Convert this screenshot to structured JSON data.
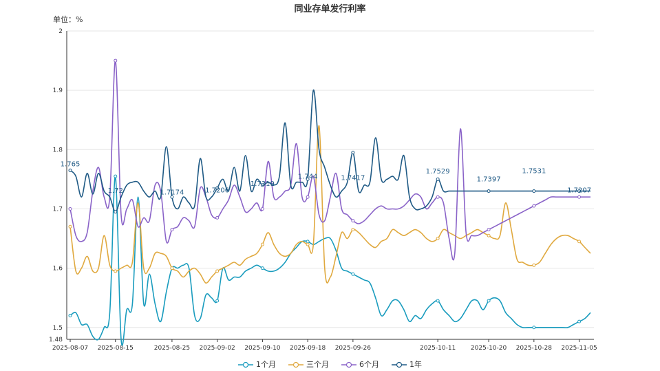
{
  "chart_data": {
    "type": "line",
    "title": "同业存单发行利率",
    "unit_label": "单位：%",
    "y_ticks": [
      "1.48",
      "1.5",
      "1.6",
      "1.7",
      "1.8",
      "1.9",
      "2"
    ],
    "ylim": [
      1.48,
      2.0
    ],
    "grid": true,
    "legend_position": "bottom-center",
    "x": [
      "2025-08-07",
      "2025-08-08",
      "2025-08-09",
      "2025-08-10",
      "2025-08-11",
      "2025-08-12",
      "2025-08-13",
      "2025-08-14",
      "2025-08-15",
      "2025-08-16",
      "2025-08-17",
      "2025-08-18",
      "2025-08-19",
      "2025-08-20",
      "2025-08-21",
      "2025-08-22",
      "2025-08-23",
      "2025-08-24",
      "2025-08-25",
      "2025-08-26",
      "2025-08-27",
      "2025-08-28",
      "2025-08-29",
      "2025-08-30",
      "2025-08-31",
      "2025-09-01",
      "2025-09-02",
      "2025-09-03",
      "2025-09-04",
      "2025-09-05",
      "2025-09-06",
      "2025-09-07",
      "2025-09-08",
      "2025-09-09",
      "2025-09-10",
      "2025-09-11",
      "2025-09-12",
      "2025-09-13",
      "2025-09-14",
      "2025-09-15",
      "2025-09-16",
      "2025-09-17",
      "2025-09-18",
      "2025-09-19",
      "2025-09-20",
      "2025-09-21",
      "2025-09-22",
      "2025-09-23",
      "2025-09-24",
      "2025-09-25",
      "2025-09-26",
      "2025-09-27",
      "2025-09-28",
      "2025-09-29",
      "2025-09-30",
      "2025-10-01",
      "2025-10-02",
      "2025-10-03",
      "2025-10-04",
      "2025-10-05",
      "2025-10-06",
      "2025-10-07",
      "2025-10-08",
      "2025-10-09",
      "2025-10-10",
      "2025-10-11",
      "2025-10-12",
      "2025-10-13",
      "2025-10-14",
      "2025-10-15",
      "2025-10-16",
      "2025-10-17",
      "2025-10-18",
      "2025-10-19",
      "2025-10-20",
      "2025-10-21",
      "2025-10-22",
      "2025-10-23",
      "2025-10-24",
      "2025-10-25",
      "2025-10-26",
      "2025-10-27",
      "2025-10-28",
      "2025-10-29",
      "2025-10-30",
      "2025-10-31",
      "2025-11-01",
      "2025-11-02",
      "2025-11-03",
      "2025-11-04",
      "2025-11-05",
      "2025-11-06",
      "2025-11-07"
    ],
    "x_tick_labels": [
      "2025-08-07",
      "2025-08-15",
      "2025-08-25",
      "2025-09-02",
      "2025-09-10",
      "2025-09-18",
      "2025-09-26",
      "2025-10-11",
      "2025-10-20",
      "2025-10-28",
      "2025-11-05"
    ],
    "series": [
      {
        "name": "1个月",
        "color": "#1a9cbe",
        "values": [
          1.52,
          1.525,
          1.505,
          1.505,
          1.485,
          1.48,
          1.5,
          1.525,
          1.755,
          1.48,
          1.53,
          1.54,
          1.72,
          1.54,
          1.59,
          1.54,
          1.51,
          1.56,
          1.6,
          1.6,
          1.605,
          1.6,
          1.52,
          1.515,
          1.555,
          1.55,
          1.545,
          1.6,
          1.58,
          1.585,
          1.585,
          1.595,
          1.6,
          1.605,
          1.6,
          1.595,
          1.595,
          1.6,
          1.61,
          1.625,
          1.635,
          1.645,
          1.645,
          1.64,
          1.645,
          1.65,
          1.65,
          1.63,
          1.6,
          1.595,
          1.59,
          1.585,
          1.58,
          1.575,
          1.55,
          1.52,
          1.53,
          1.545,
          1.545,
          1.53,
          1.51,
          1.52,
          1.515,
          1.53,
          1.54,
          1.545,
          1.53,
          1.52,
          1.51,
          1.515,
          1.53,
          1.545,
          1.545,
          1.53,
          1.545,
          1.55,
          1.545,
          1.525,
          1.515,
          1.505,
          1.5,
          1.5,
          1.5,
          1.5,
          1.5,
          1.5,
          1.5,
          1.5,
          1.5,
          1.505,
          1.51,
          1.515,
          1.525
        ]
      },
      {
        "name": "三个月",
        "color": "#e0a93f",
        "values": [
          1.67,
          1.595,
          1.6,
          1.62,
          1.595,
          1.6,
          1.655,
          1.605,
          1.595,
          1.6,
          1.605,
          1.61,
          1.71,
          1.6,
          1.6,
          1.625,
          1.625,
          1.62,
          1.6,
          1.595,
          1.585,
          1.595,
          1.6,
          1.59,
          1.575,
          1.585,
          1.595,
          1.6,
          1.605,
          1.61,
          1.605,
          1.615,
          1.62,
          1.625,
          1.64,
          1.66,
          1.64,
          1.625,
          1.62,
          1.625,
          1.64,
          1.645,
          1.64,
          1.64,
          1.84,
          1.6,
          1.585,
          1.62,
          1.66,
          1.65,
          1.665,
          1.66,
          1.65,
          1.64,
          1.635,
          1.645,
          1.65,
          1.665,
          1.66,
          1.655,
          1.66,
          1.665,
          1.66,
          1.65,
          1.645,
          1.65,
          1.665,
          1.66,
          1.655,
          1.65,
          1.655,
          1.66,
          1.665,
          1.66,
          1.655,
          1.65,
          1.655,
          1.71,
          1.665,
          1.615,
          1.61,
          1.605,
          1.605,
          1.61,
          1.625,
          1.64,
          1.65,
          1.655,
          1.655,
          1.65,
          1.645,
          1.635,
          1.625
        ]
      },
      {
        "name": "6个月",
        "color": "#8a63c8",
        "values": [
          1.7,
          1.655,
          1.645,
          1.66,
          1.73,
          1.77,
          1.72,
          1.72,
          1.95,
          1.69,
          1.7,
          1.715,
          1.67,
          1.685,
          1.68,
          1.74,
          1.73,
          1.645,
          1.665,
          1.67,
          1.685,
          1.68,
          1.67,
          1.735,
          1.72,
          1.69,
          1.685,
          1.7,
          1.715,
          1.74,
          1.72,
          1.695,
          1.7,
          1.71,
          1.7,
          1.78,
          1.72,
          1.72,
          1.73,
          1.74,
          1.81,
          1.72,
          1.72,
          1.755,
          1.69,
          1.68,
          1.72,
          1.76,
          1.7,
          1.69,
          1.68,
          1.675,
          1.68,
          1.69,
          1.7,
          1.705,
          1.7,
          1.7,
          1.7,
          1.705,
          1.715,
          1.725,
          1.72,
          1.7,
          1.71,
          1.72,
          1.71,
          1.65,
          1.625,
          1.835,
          1.66,
          1.655,
          1.655,
          1.66,
          1.665,
          1.67,
          1.675,
          1.68,
          1.685,
          1.69,
          1.695,
          1.7,
          1.705,
          1.71,
          1.715,
          1.72,
          1.72,
          1.72,
          1.72,
          1.72,
          1.72,
          1.72,
          1.72
        ]
      },
      {
        "name": "1年",
        "color": "#1f5a85",
        "values": [
          1.765,
          1.755,
          1.72,
          1.76,
          1.725,
          1.76,
          1.73,
          1.72,
          1.695,
          1.72,
          1.74,
          1.745,
          1.745,
          1.73,
          1.72,
          1.73,
          1.72,
          1.805,
          1.72,
          1.7,
          1.72,
          1.71,
          1.705,
          1.785,
          1.72,
          1.72,
          1.735,
          1.75,
          1.73,
          1.77,
          1.73,
          1.79,
          1.73,
          1.75,
          1.74,
          1.745,
          1.74,
          1.755,
          1.845,
          1.74,
          1.745,
          1.745,
          1.75,
          1.9,
          1.8,
          1.77,
          1.74,
          1.72,
          1.73,
          1.745,
          1.795,
          1.73,
          1.74,
          1.745,
          1.82,
          1.75,
          1.75,
          1.755,
          1.75,
          1.79,
          1.72,
          1.7,
          1.7,
          1.705,
          1.72,
          1.75,
          1.73,
          1.73,
          1.73,
          1.73,
          1.73,
          1.73,
          1.73,
          1.73,
          1.73,
          1.73,
          1.73,
          1.73,
          1.73,
          1.73,
          1.73,
          1.73,
          1.73,
          1.73,
          1.73,
          1.73,
          1.73,
          1.73,
          1.73,
          1.73,
          1.73,
          1.73,
          1.73
        ]
      }
    ],
    "data_labels": [
      {
        "text": "1.765",
        "x": "2025-08-07",
        "y": 1.765
      },
      {
        "text": "1.72",
        "x": "2025-08-15",
        "y": 1.72
      },
      {
        "text": "1.7174",
        "x": "2025-08-25",
        "y": 1.7174
      },
      {
        "text": "1.7206",
        "x": "2025-09-02",
        "y": 1.7206
      },
      {
        "text": "1.7319",
        "x": "2025-09-10",
        "y": 1.7319
      },
      {
        "text": "1.744",
        "x": "2025-09-18",
        "y": 1.744
      },
      {
        "text": "1.7417",
        "x": "2025-09-26",
        "y": 1.7417
      },
      {
        "text": "1.7529",
        "x": "2025-10-11",
        "y": 1.7529
      },
      {
        "text": "1.7397",
        "x": "2025-10-20",
        "y": 1.7397
      },
      {
        "text": "1.7531",
        "x": "2025-10-28",
        "y": 1.7531
      },
      {
        "text": "1.7207",
        "x": "2025-11-05",
        "y": 1.7207
      }
    ]
  }
}
